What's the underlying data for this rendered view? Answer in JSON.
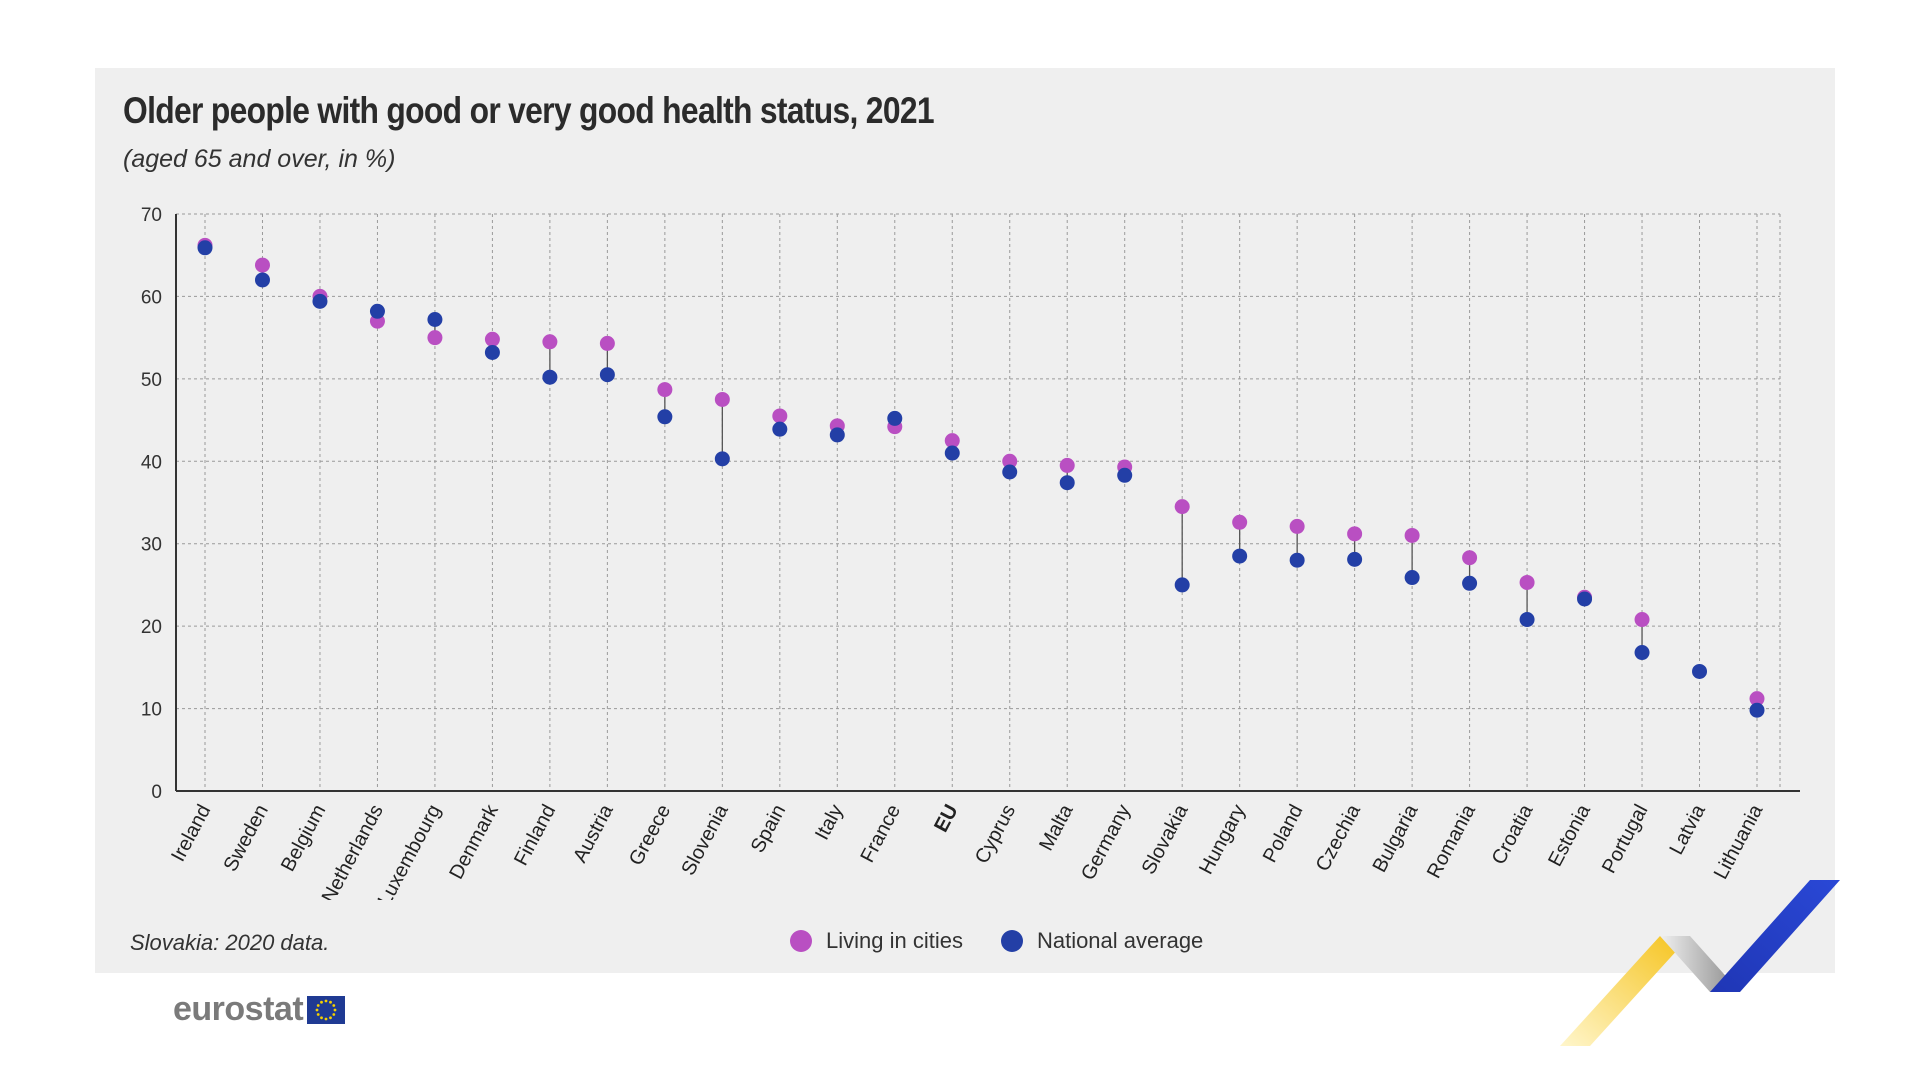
{
  "title": "Older people with good or very good health status, 2021",
  "subtitle": "(aged 65 and over, in %)",
  "note": "Slovakia: 2020 data.",
  "logo": {
    "text": "eurostat",
    "flag_icon": "eu-flag-icon"
  },
  "colors": {
    "cities": "#b94fc2",
    "national": "#233fa6",
    "connector": "#555555",
    "grid": "#9a9a9a",
    "panel": "#efefef"
  },
  "chart_data": {
    "type": "scatter",
    "title": "Older people with good or very good health status, 2021",
    "subtitle": "(aged 65 and over, in %)",
    "xlabel": "",
    "ylabel": "",
    "ylim": [
      0,
      70
    ],
    "yticks": [
      0,
      10,
      20,
      30,
      40,
      50,
      60,
      70
    ],
    "grid": true,
    "legend_position": "bottom-center",
    "categories": [
      "Ireland",
      "Sweden",
      "Belgium",
      "Netherlands",
      "Luxembourg",
      "Denmark",
      "Finland",
      "Austria",
      "Greece",
      "Slovenia",
      "Spain",
      "Italy",
      "France",
      "EU",
      "Cyprus",
      "Malta",
      "Germany",
      "Slovakia",
      "Hungary",
      "Poland",
      "Czechia",
      "Bulgaria",
      "Romania",
      "Croatia",
      "Estonia",
      "Portugal",
      "Latvia",
      "Lithuania"
    ],
    "bold_categories": [
      "EU"
    ],
    "series": [
      {
        "name": "Living in cities",
        "color": "#b94fc2",
        "values": [
          66.2,
          63.8,
          60.0,
          57.0,
          55.0,
          54.8,
          54.5,
          54.3,
          48.7,
          47.5,
          45.5,
          44.3,
          44.2,
          42.5,
          40.0,
          39.5,
          39.3,
          34.5,
          32.6,
          32.1,
          31.2,
          31.0,
          28.3,
          25.3,
          23.5,
          20.8,
          null,
          11.2
        ]
      },
      {
        "name": "National average",
        "color": "#233fa6",
        "values": [
          65.9,
          62.0,
          59.4,
          58.2,
          57.2,
          53.2,
          50.2,
          50.5,
          45.4,
          40.3,
          43.9,
          43.2,
          45.2,
          41.0,
          38.7,
          37.4,
          38.3,
          25.0,
          28.5,
          28.0,
          28.1,
          25.9,
          25.2,
          20.8,
          23.3,
          16.8,
          14.5,
          9.8
        ]
      }
    ]
  },
  "legend": {
    "cities_label": "Living in cities",
    "national_label": "National average"
  }
}
